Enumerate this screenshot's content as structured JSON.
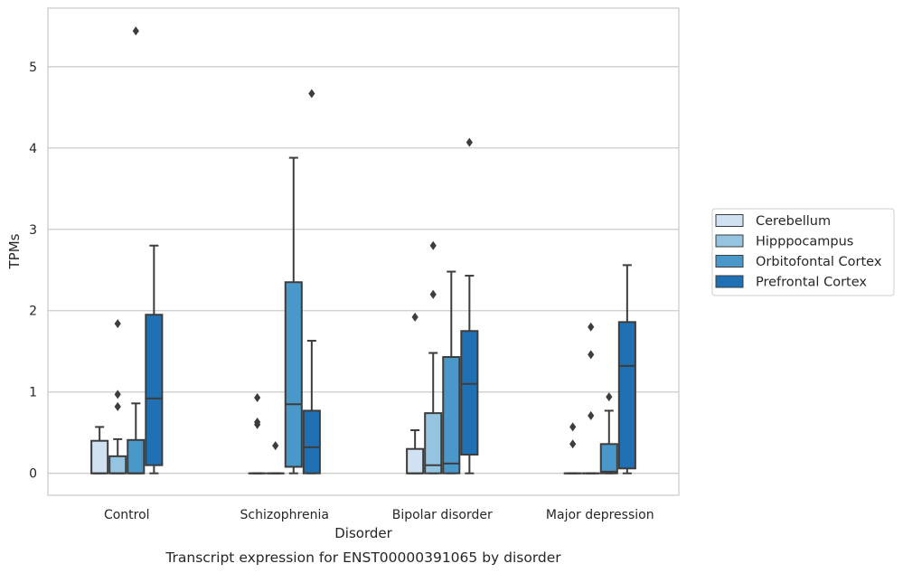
{
  "chart_data": {
    "type": "box",
    "caption": "Transcript expression for ENST00000391065 by disorder",
    "xlabel": "Disorder",
    "ylabel": "TPMs",
    "ylim": [
      -0.27,
      5.72
    ],
    "yticks": [
      0,
      1,
      2,
      3,
      4,
      5
    ],
    "grid": "horizontal",
    "legend_position": "right",
    "categories": [
      "Control",
      "Schizophrenia",
      "Bipolar disorder",
      "Major depression"
    ],
    "series": [
      {
        "name": "Cerebellum",
        "color": "#d0e1f2",
        "boxes": [
          {
            "q1": 0,
            "median": 0,
            "q3": 0.4,
            "whisker_low": 0,
            "whisker_high": 0.57,
            "outliers": []
          },
          {
            "q1": 0,
            "median": 0,
            "q3": 0,
            "whisker_low": 0,
            "whisker_high": 0,
            "outliers": [
              0.6,
              0.63,
              0.93
            ]
          },
          {
            "q1": 0,
            "median": 0,
            "q3": 0.3,
            "whisker_low": 0,
            "whisker_high": 0.53,
            "outliers": [
              1.92
            ]
          },
          {
            "q1": 0,
            "median": 0,
            "q3": 0,
            "whisker_low": 0,
            "whisker_high": 0,
            "outliers": [
              0.36,
              0.57
            ]
          }
        ]
      },
      {
        "name": "Hipppocampus",
        "color": "#94c4df",
        "boxes": [
          {
            "q1": 0,
            "median": 0,
            "q3": 0.21,
            "whisker_low": 0,
            "whisker_high": 0.42,
            "outliers": [
              0.82,
              0.97,
              1.84
            ]
          },
          {
            "q1": 0,
            "median": 0,
            "q3": 0,
            "whisker_low": 0,
            "whisker_high": 0,
            "outliers": [
              0.34
            ]
          },
          {
            "q1": 0,
            "median": 0.1,
            "q3": 0.74,
            "whisker_low": 0,
            "whisker_high": 1.48,
            "outliers": [
              2.2,
              2.8
            ]
          },
          {
            "q1": 0,
            "median": 0,
            "q3": 0,
            "whisker_low": 0,
            "whisker_high": 0,
            "outliers": [
              0.71,
              1.46,
              1.8
            ]
          }
        ]
      },
      {
        "name": "Orbitofontal Cortex",
        "color": "#4a98c9",
        "boxes": [
          {
            "q1": 0,
            "median": 0,
            "q3": 0.41,
            "whisker_low": 0,
            "whisker_high": 0.86,
            "outliers": [
              5.44
            ]
          },
          {
            "q1": 0.08,
            "median": 0.85,
            "q3": 2.35,
            "whisker_low": 0,
            "whisker_high": 3.88,
            "outliers": []
          },
          {
            "q1": 0,
            "median": 0.12,
            "q3": 1.43,
            "whisker_low": 0,
            "whisker_high": 2.48,
            "outliers": []
          },
          {
            "q1": 0,
            "median": 0.02,
            "q3": 0.36,
            "whisker_low": 0,
            "whisker_high": 0.77,
            "outliers": [
              0.94
            ]
          }
        ]
      },
      {
        "name": "Prefrontal Cortex",
        "color": "#2070b4",
        "boxes": [
          {
            "q1": 0.1,
            "median": 0.92,
            "q3": 1.95,
            "whisker_low": 0,
            "whisker_high": 2.8,
            "outliers": []
          },
          {
            "q1": 0,
            "median": 0.32,
            "q3": 0.77,
            "whisker_low": 0,
            "whisker_high": 1.63,
            "outliers": [
              4.67
            ]
          },
          {
            "q1": 0.23,
            "median": 1.1,
            "q3": 1.75,
            "whisker_low": 0,
            "whisker_high": 2.43,
            "outliers": [
              4.07
            ]
          },
          {
            "q1": 0.06,
            "median": 1.32,
            "q3": 1.86,
            "whisker_low": 0,
            "whisker_high": 2.56,
            "outliers": []
          }
        ]
      }
    ]
  }
}
